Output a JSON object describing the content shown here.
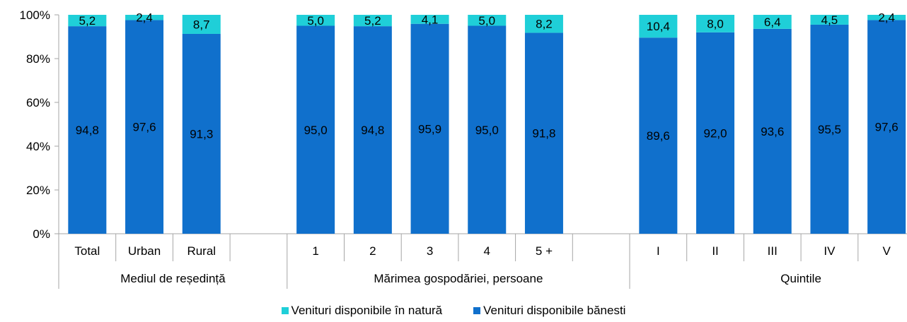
{
  "chart_data": {
    "type": "bar",
    "stacked": true,
    "normalized_percent": true,
    "ylim": [
      0,
      100
    ],
    "y_ticks": [
      "0%",
      "20%",
      "40%",
      "60%",
      "80%",
      "100%"
    ],
    "groups": [
      {
        "label": "Mediul de reședință",
        "categories": [
          "Total",
          "Urban",
          "Rural"
        ]
      },
      {
        "label": "Mărimea gospodăriei, persoane",
        "categories": [
          "1",
          "2",
          "3",
          "4",
          "5 +"
        ]
      },
      {
        "label": "Quintile",
        "categories": [
          "I",
          "II",
          "III",
          "IV",
          "V"
        ]
      }
    ],
    "series": [
      {
        "name": "Venituri disponibile bănesti",
        "color": "#1070CC",
        "values": [
          94.8,
          97.6,
          91.3,
          95.0,
          94.8,
          95.9,
          95.0,
          91.8,
          89.6,
          92.0,
          93.6,
          95.5,
          97.6
        ],
        "labels": [
          "94,8",
          "97,6",
          "91,3",
          "95,0",
          "94,8",
          "95,9",
          "95,0",
          "91,8",
          "89,6",
          "92,0",
          "93,6",
          "95,5",
          "97,6"
        ]
      },
      {
        "name": "Venituri disponibile în natură",
        "color": "#1FCFD8",
        "values": [
          5.2,
          2.4,
          8.7,
          5.0,
          5.2,
          4.1,
          5.0,
          8.2,
          10.4,
          8.0,
          6.4,
          4.5,
          2.4
        ],
        "labels": [
          "5,2",
          "2,4",
          "8,7",
          "5,0",
          "5,2",
          "4,1",
          "5,0",
          "8,2",
          "10,4",
          "8,0",
          "6,4",
          "4,5",
          "2,4"
        ]
      }
    ],
    "legend": {
      "position": "bottom",
      "order": [
        1,
        0
      ]
    },
    "grid": false
  }
}
